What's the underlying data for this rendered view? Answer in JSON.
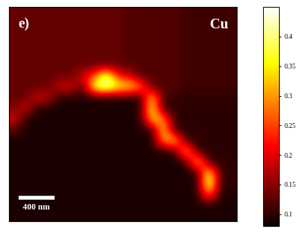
{
  "chart_data": {
    "type": "heatmap",
    "tick_labels": false,
    "annotations": {
      "panel": "e)",
      "element": "Cu",
      "scale_bar": "400 nm"
    },
    "cells": [
      [
        0.13,
        0.13,
        0.13,
        0.13,
        0.13,
        0.13,
        0.13,
        0.13,
        0.13,
        0.13,
        0.12,
        0.12,
        0.12,
        0.12,
        0.12,
        0.11,
        0.11,
        0.11,
        0.11,
        0.11
      ],
      [
        0.13,
        0.13,
        0.13,
        0.13,
        0.13,
        0.13,
        0.13,
        0.13,
        0.13,
        0.13,
        0.12,
        0.12,
        0.12,
        0.12,
        0.12,
        0.11,
        0.11,
        0.11,
        0.11,
        0.11
      ],
      [
        0.13,
        0.13,
        0.13,
        0.13,
        0.13,
        0.13,
        0.13,
        0.13,
        0.13,
        0.13,
        0.12,
        0.12,
        0.12,
        0.12,
        0.12,
        0.11,
        0.11,
        0.11,
        0.11,
        0.11
      ],
      [
        0.13,
        0.13,
        0.13,
        0.13,
        0.13,
        0.13,
        0.13,
        0.13,
        0.13,
        0.13,
        0.12,
        0.12,
        0.12,
        0.12,
        0.12,
        0.11,
        0.11,
        0.11,
        0.11,
        0.11
      ],
      [
        0.13,
        0.13,
        0.13,
        0.13,
        0.13,
        0.13,
        0.13,
        0.13,
        0.13,
        0.13,
        0.12,
        0.12,
        0.12,
        0.12,
        0.12,
        0.11,
        0.11,
        0.11,
        0.11,
        0.11
      ],
      [
        0.13,
        0.13,
        0.13,
        0.13,
        0.13,
        0.13,
        0.13,
        0.13,
        0.13,
        0.13,
        0.12,
        0.12,
        0.12,
        0.12,
        0.12,
        0.11,
        0.11,
        0.11,
        0.11,
        0.11
      ],
      [
        0.13,
        0.13,
        0.13,
        0.13,
        0.13,
        0.13,
        0.2,
        0.25,
        0.44,
        0.22,
        0.2,
        0.12,
        0.12,
        0.12,
        0.12,
        0.11,
        0.11,
        0.11,
        0.11,
        0.11
      ],
      [
        0.13,
        0.13,
        0.13,
        0.13,
        0.2,
        0.2,
        0.12,
        0.4,
        0.44,
        0.38,
        0.36,
        0.3,
        0.12,
        0.12,
        0.12,
        0.11,
        0.11,
        0.11,
        0.11,
        0.11
      ],
      [
        0.13,
        0.13,
        0.2,
        0.18,
        0.09,
        0.09,
        0.09,
        0.09,
        0.09,
        0.09,
        0.09,
        0.09,
        0.36,
        0.11,
        0.11,
        0.1,
        0.1,
        0.1,
        0.1,
        0.1
      ],
      [
        0.14,
        0.2,
        0.09,
        0.09,
        0.09,
        0.09,
        0.09,
        0.09,
        0.09,
        0.09,
        0.09,
        0.09,
        0.38,
        0.1,
        0.1,
        0.1,
        0.1,
        0.1,
        0.1,
        0.1
      ],
      [
        0.2,
        0.09,
        0.09,
        0.09,
        0.09,
        0.09,
        0.09,
        0.09,
        0.09,
        0.09,
        0.09,
        0.09,
        0.35,
        0.3,
        0.1,
        0.1,
        0.1,
        0.1,
        0.1,
        0.1
      ],
      [
        0.12,
        0.09,
        0.09,
        0.09,
        0.09,
        0.09,
        0.09,
        0.09,
        0.09,
        0.09,
        0.09,
        0.09,
        0.09,
        0.36,
        0.1,
        0.1,
        0.1,
        0.1,
        0.1,
        0.1
      ],
      [
        0.09,
        0.09,
        0.09,
        0.09,
        0.09,
        0.09,
        0.09,
        0.09,
        0.09,
        0.09,
        0.09,
        0.09,
        0.09,
        0.3,
        0.36,
        0.1,
        0.1,
        0.1,
        0.1,
        0.1
      ],
      [
        0.09,
        0.09,
        0.09,
        0.09,
        0.09,
        0.09,
        0.09,
        0.09,
        0.09,
        0.09,
        0.09,
        0.09,
        0.09,
        0.09,
        0.09,
        0.37,
        0.1,
        0.1,
        0.1,
        0.1
      ],
      [
        0.09,
        0.09,
        0.09,
        0.09,
        0.09,
        0.09,
        0.09,
        0.09,
        0.09,
        0.09,
        0.09,
        0.09,
        0.09,
        0.09,
        0.09,
        0.09,
        0.38,
        0.1,
        0.1,
        0.1
      ],
      [
        0.09,
        0.09,
        0.09,
        0.09,
        0.09,
        0.09,
        0.09,
        0.09,
        0.09,
        0.09,
        0.09,
        0.09,
        0.09,
        0.09,
        0.09,
        0.09,
        0.09,
        0.4,
        0.1,
        0.1
      ],
      [
        0.09,
        0.09,
        0.09,
        0.09,
        0.09,
        0.09,
        0.09,
        0.09,
        0.09,
        0.09,
        0.09,
        0.09,
        0.09,
        0.09,
        0.09,
        0.09,
        0.09,
        0.44,
        0.1,
        0.1
      ],
      [
        0.09,
        0.09,
        0.09,
        0.09,
        0.09,
        0.09,
        0.09,
        0.09,
        0.09,
        0.09,
        0.09,
        0.09,
        0.09,
        0.09,
        0.09,
        0.09,
        0.09,
        0.3,
        0.09,
        0.09
      ],
      [
        0.09,
        0.09,
        0.09,
        0.09,
        0.09,
        0.09,
        0.09,
        0.09,
        0.09,
        0.09,
        0.09,
        0.09,
        0.09,
        0.09,
        0.09,
        0.09,
        0.09,
        0.09,
        0.09,
        0.09
      ],
      [
        0.09,
        0.09,
        0.09,
        0.09,
        0.09,
        0.09,
        0.09,
        0.09,
        0.09,
        0.09,
        0.09,
        0.09,
        0.09,
        0.09,
        0.09,
        0.09,
        0.09,
        0.09,
        0.09,
        0.09
      ]
    ],
    "colorbar": {
      "range": [
        0.08,
        0.45
      ],
      "ticks": [
        0.1,
        0.15,
        0.2,
        0.25,
        0.3,
        0.35,
        0.4
      ]
    }
  }
}
